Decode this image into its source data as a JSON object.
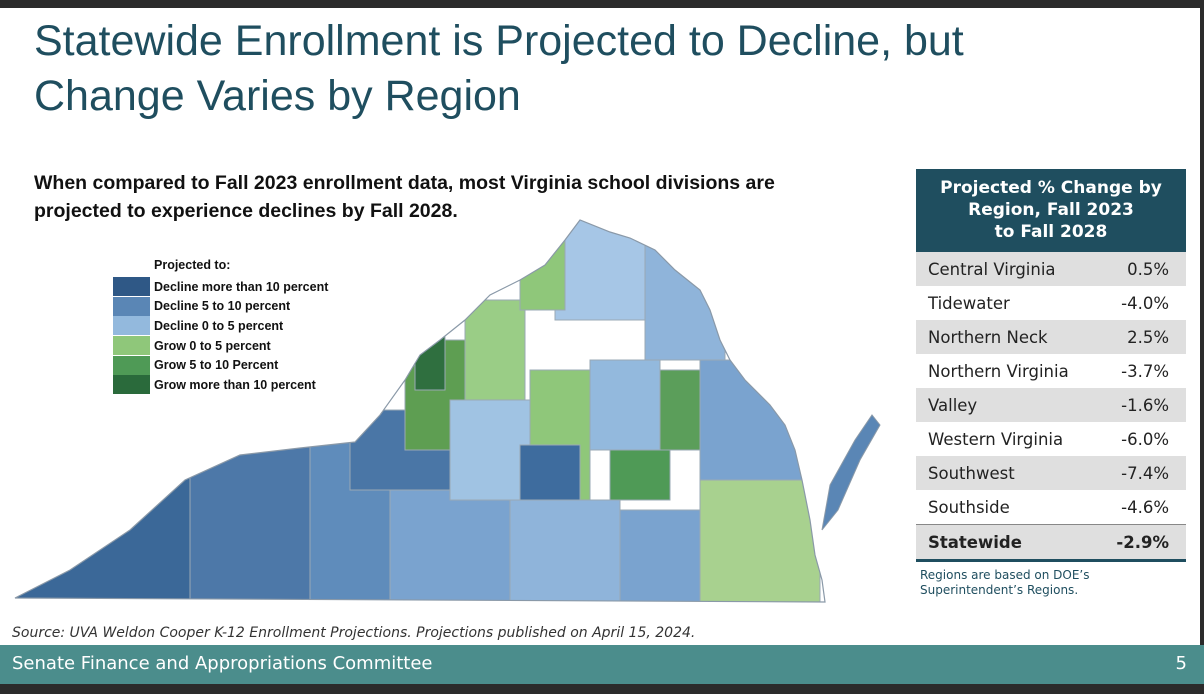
{
  "slide": {
    "title_line1": "Statewide Enrollment is Projected to Decline, but",
    "title_line2": "Change Varies by Region",
    "subtitle_line1": "When compared to Fall 2023 enrollment data, most Virginia school divisions are",
    "subtitle_line2": "projected to experience declines by Fall 2028.",
    "source": "Source: UVA Weldon Cooper K-12 Enrollment Projections. Projections published on April 15, 2024.",
    "footer": "Senate Finance and Appropriations Committee",
    "page_number": "5"
  },
  "legend": {
    "title": "Projected to:",
    "items": [
      {
        "label": "Decline more than 10 percent",
        "color": "#2f5886"
      },
      {
        "label": "Decline 5 to 10 percent",
        "color": "#5a86b5"
      },
      {
        "label": "Decline 0 to 5 percent",
        "color": "#93b9dd"
      },
      {
        "label": "Grow 0 to 5 percent",
        "color": "#8fc77a"
      },
      {
        "label": "Grow 5 to 10 Percent",
        "color": "#4f9a56"
      },
      {
        "label": "Grow more than 10 percent",
        "color": "#2a6a3b"
      }
    ]
  },
  "table": {
    "header_line1": "Projected % Change by",
    "header_line2": "Region, Fall 2023",
    "header_line3": "to Fall 2028",
    "rows": [
      {
        "region": "Central Virginia",
        "change": "0.5%"
      },
      {
        "region": "Tidewater",
        "change": "-4.0%"
      },
      {
        "region": "Northern Neck",
        "change": "2.5%"
      },
      {
        "region": "Northern Virginia",
        "change": "-3.7%"
      },
      {
        "region": "Valley",
        "change": "-1.6%"
      },
      {
        "region": "Western Virginia",
        "change": "-6.0%"
      },
      {
        "region": "Southwest",
        "change": "-7.4%"
      },
      {
        "region": "Southside",
        "change": "-4.6%"
      },
      {
        "region": "Statewide",
        "change": "-2.9%"
      }
    ],
    "note_line1": "Regions are based on DOE’s",
    "note_line2": "Superintendent’s Regions."
  },
  "colors": {
    "title": "#1f4e5f",
    "header_bg": "#1f4e5f",
    "footer_bg": "#4b8d8c",
    "map_border": "#9aa8b4"
  }
}
